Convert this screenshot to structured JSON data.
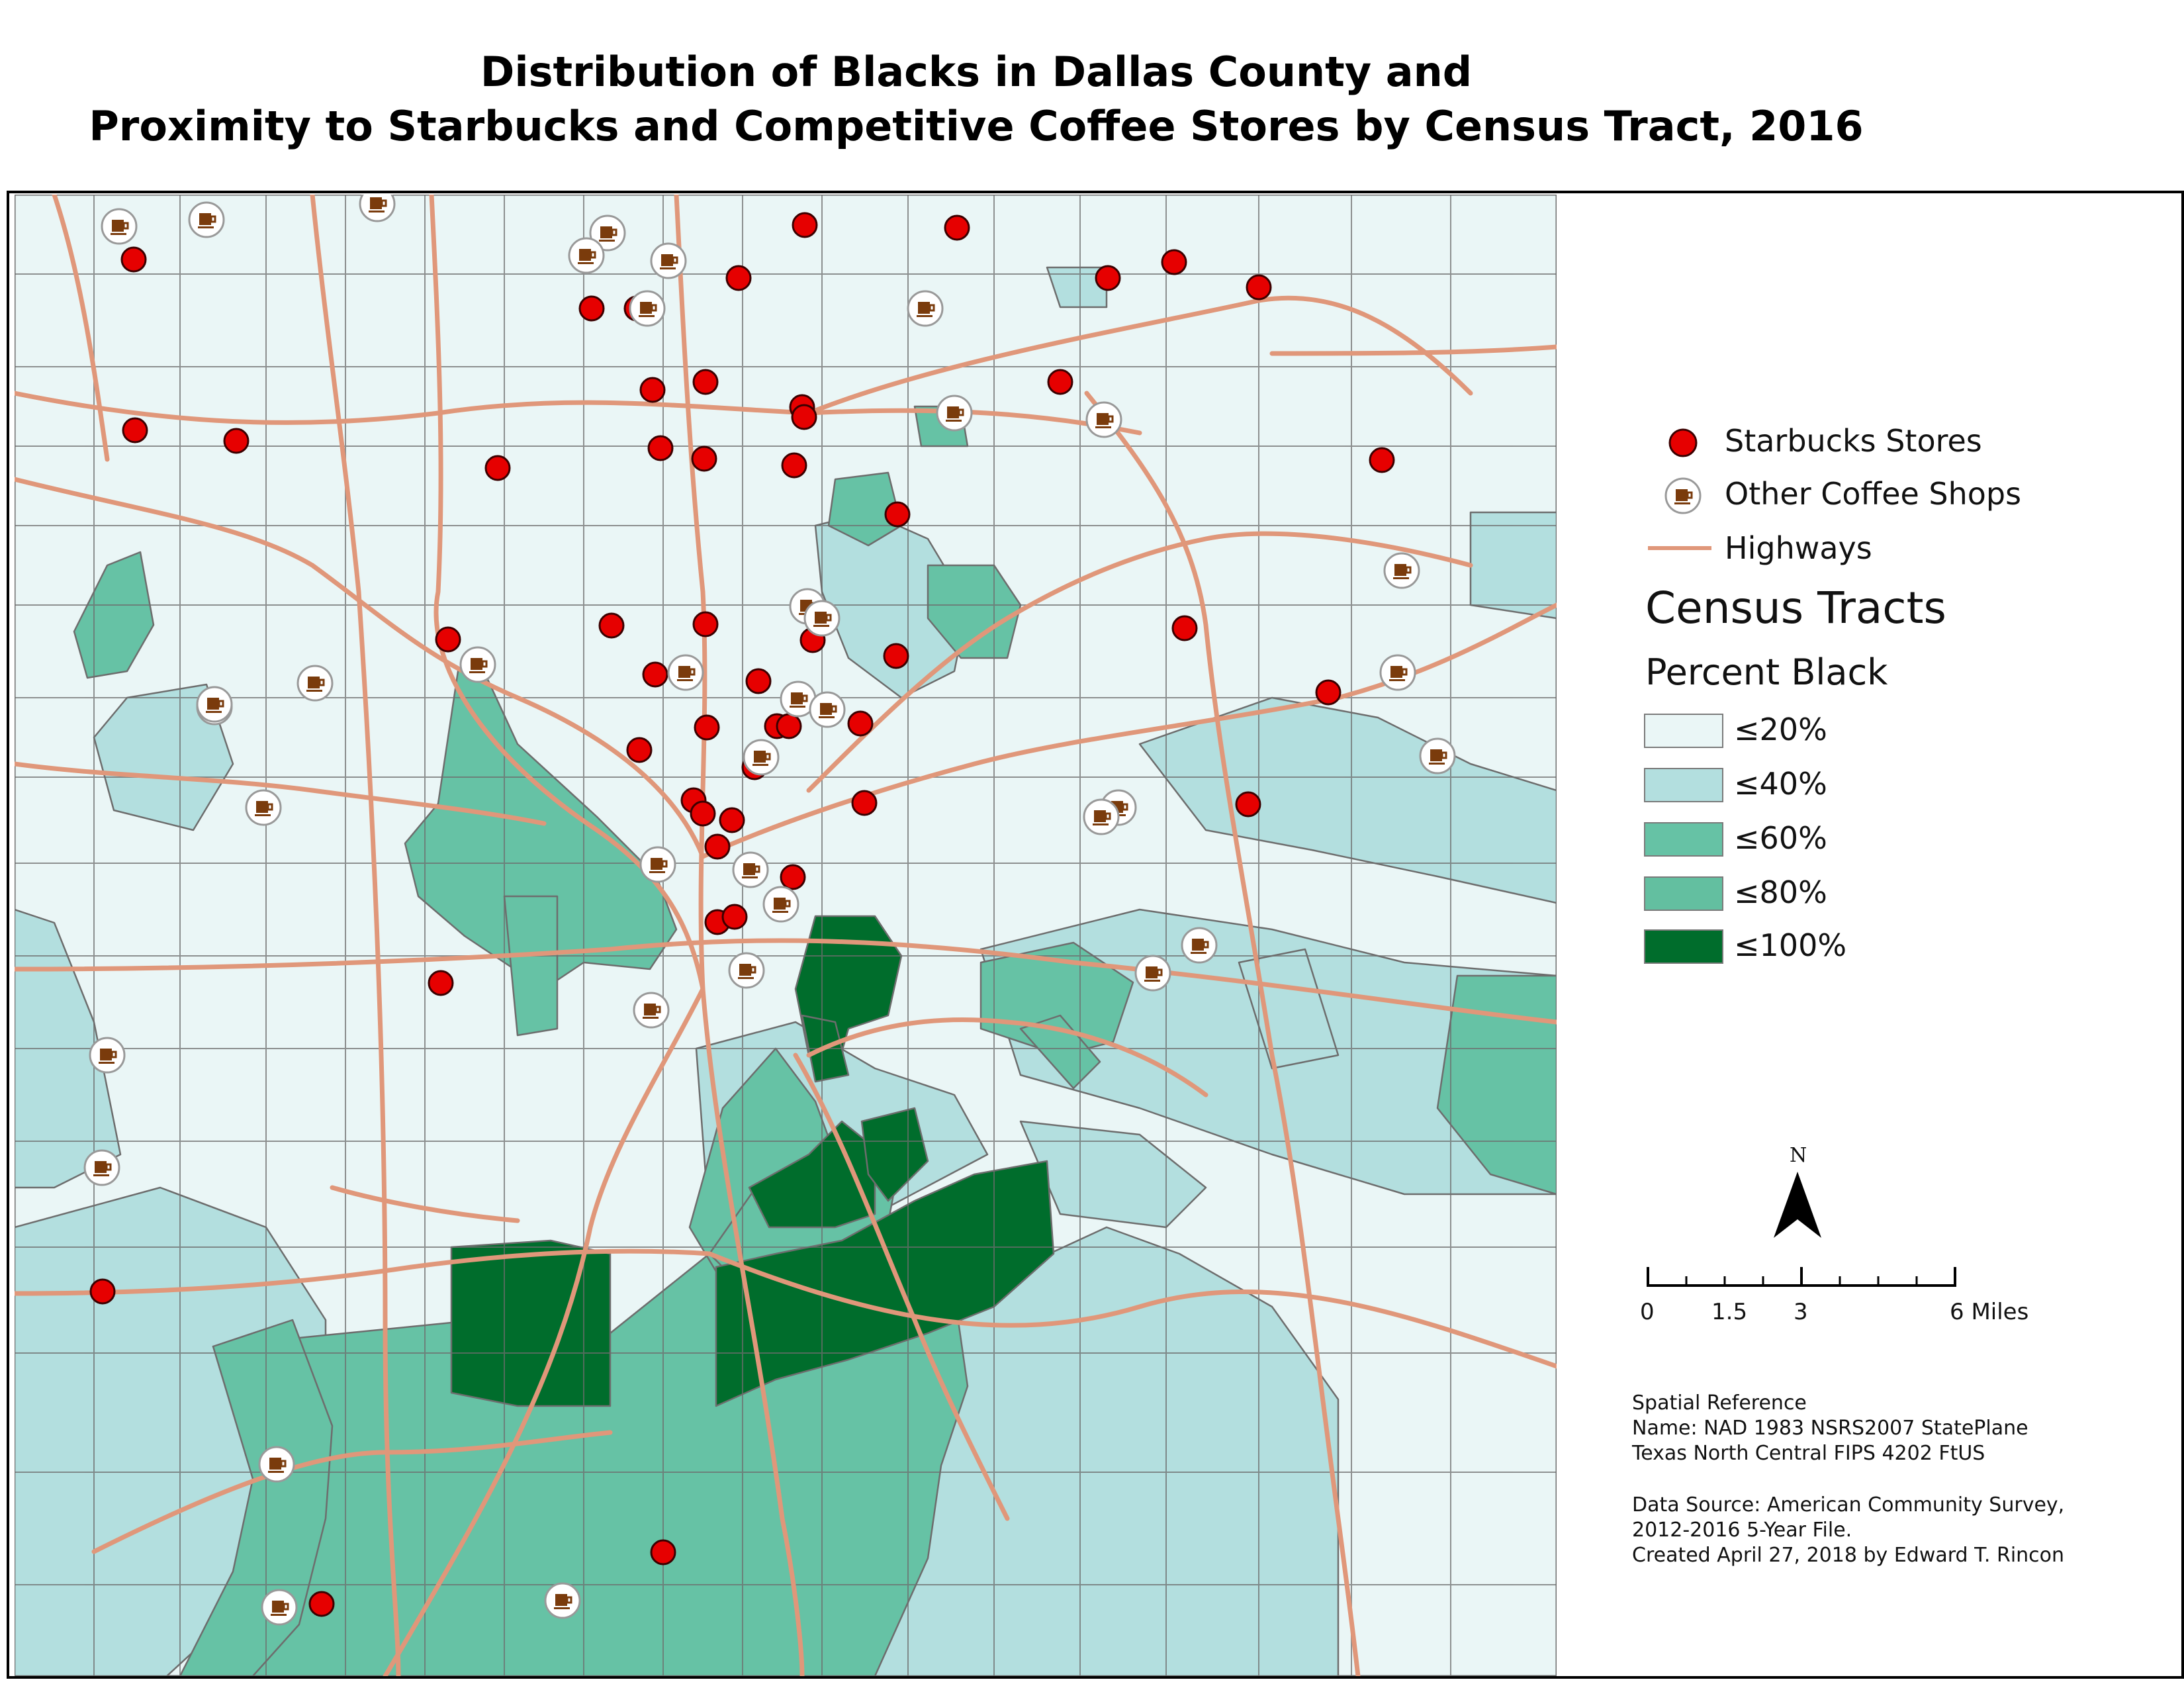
{
  "title": {
    "line1": "Distribution of Blacks in Dallas County and",
    "line2": "Proximity to Starbucks and Competitive Coffee Stores by Census Tract, 2016"
  },
  "colors": {
    "c20": "#eaf6f6",
    "c40": "#b3dfdf",
    "c60": "#66c2a5",
    "c80": "#63bfa0",
    "c100": "#006d2c",
    "highway": "#e0977a",
    "tract_line": "#6d6d6d",
    "starbucks": "#e60000",
    "coffee_icon": "#7a3b0c"
  },
  "legend": {
    "starbucks": "Starbucks Stores",
    "other": "Other Coffee Shops",
    "highways": "Highways",
    "census_tracts": "Census Tracts",
    "percent_black": "Percent Black",
    "classes": [
      {
        "label": "≤20%",
        "color": "#eaf6f6"
      },
      {
        "label": "≤40%",
        "color": "#b3dfdf"
      },
      {
        "label": "≤60%",
        "color": "#66c2a5"
      },
      {
        "label": "≤80%",
        "color": "#63bfa0"
      },
      {
        "label": "≤100%",
        "color": "#006d2c"
      }
    ]
  },
  "north_arrow": {
    "label": "N",
    "icon": "north-arrow-icon"
  },
  "scale_bar": {
    "labels": [
      "0",
      "1.5",
      "3",
      "6 Miles"
    ]
  },
  "spatial_reference": {
    "heading": "Spatial Reference",
    "name": "Name: NAD 1983 NSRS2007 StatePlane",
    "zone": "Texas North Central FIPS 4202 FtUS"
  },
  "data_source": {
    "line1": "Data Source: American Community Survey,",
    "line2": "2012-2016 5-Year File.",
    "line3": "Created April 27, 2018 by Edward T. Rincon"
  }
}
